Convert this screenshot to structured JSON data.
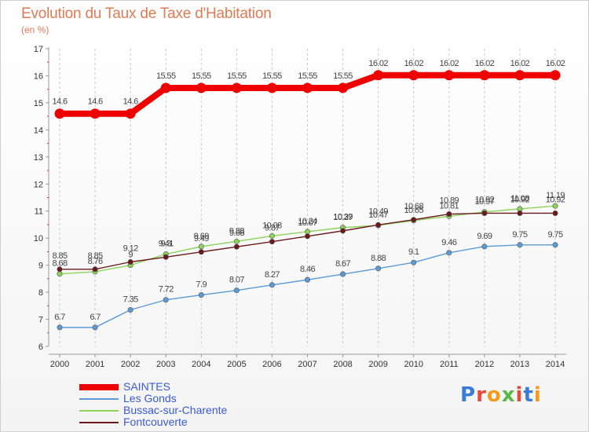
{
  "header": {
    "title": "Evolution du Taux de Taxe d'Habitation",
    "subtitle": "(en %)"
  },
  "logo": {
    "text": "Proxiti",
    "letter_colors": [
      "#3a7bd5",
      "#e64a3b",
      "#f29b1d",
      "#58b847",
      "#e64a3b",
      "#3a7bd5",
      "#f29b1d"
    ]
  },
  "chart_data": {
    "type": "line",
    "x": [
      2000,
      2001,
      2002,
      2003,
      2004,
      2005,
      2006,
      2007,
      2008,
      2009,
      2010,
      2011,
      2012,
      2013,
      2014
    ],
    "ylim": [
      6,
      17
    ],
    "yticks": [
      6,
      7,
      8,
      9,
      10,
      11,
      12,
      13,
      14,
      15,
      16,
      17
    ],
    "grid": "dashed vertical",
    "legend_placement": "bottom-left",
    "series": [
      {
        "name": "SAINTES",
        "color": "#ee0000",
        "values": [
          14.6,
          14.6,
          14.6,
          15.55,
          15.55,
          15.55,
          15.55,
          15.55,
          15.55,
          16.02,
          16.02,
          16.02,
          16.02,
          16.02,
          16.02
        ],
        "labels": [
          "14.6",
          "14.6",
          "14.6",
          "15.55",
          "15.55",
          "15.55",
          "15.55",
          "15.55",
          "15.55",
          "16.02",
          "16.02",
          "16.02",
          "16.02",
          "16.02",
          "16.02"
        ]
      },
      {
        "name": "Les Gonds",
        "color": "#5b9bd5",
        "values": [
          6.7,
          6.7,
          7.35,
          7.72,
          7.9,
          8.07,
          8.27,
          8.46,
          8.67,
          8.88,
          9.1,
          9.46,
          9.69,
          9.75,
          9.75
        ],
        "labels": [
          "6.7",
          "6.7",
          "7.35",
          "7.72",
          "7.9",
          "8.07",
          "8.27",
          "8.46",
          "8.67",
          "8.88",
          "9.1",
          "9.46",
          "9.69",
          "9.75",
          "9.75"
        ]
      },
      {
        "name": "Bussac-sur-Charente",
        "color": "#8cd35a",
        "values": [
          8.68,
          8.76,
          9.0,
          9.41,
          9.69,
          9.88,
          10.08,
          10.24,
          10.39,
          10.47,
          10.65,
          10.81,
          10.97,
          11.08,
          11.19
        ],
        "labels": [
          "8.68",
          "8.76",
          "9",
          "9.41",
          "9.69",
          "9.88",
          "10.08",
          "10.24",
          "10.39",
          "10.47",
          "10.65",
          "10.81",
          "10.97",
          "11.08",
          "11.19"
        ]
      },
      {
        "name": "Fontcouverte",
        "color": "#6b1a1a",
        "values": [
          8.85,
          8.85,
          9.12,
          9.3,
          9.49,
          9.68,
          9.87,
          10.07,
          10.27,
          10.49,
          10.68,
          10.89,
          10.92,
          10.92,
          10.92
        ],
        "labels": [
          "8.85",
          "8.85",
          "9.12",
          "9.3",
          "9.49",
          "9.68",
          "9.87",
          "10.07",
          "10.27",
          "10.49",
          "10.68",
          "10.89",
          "10.92",
          "10.92",
          "10.92"
        ]
      }
    ]
  }
}
